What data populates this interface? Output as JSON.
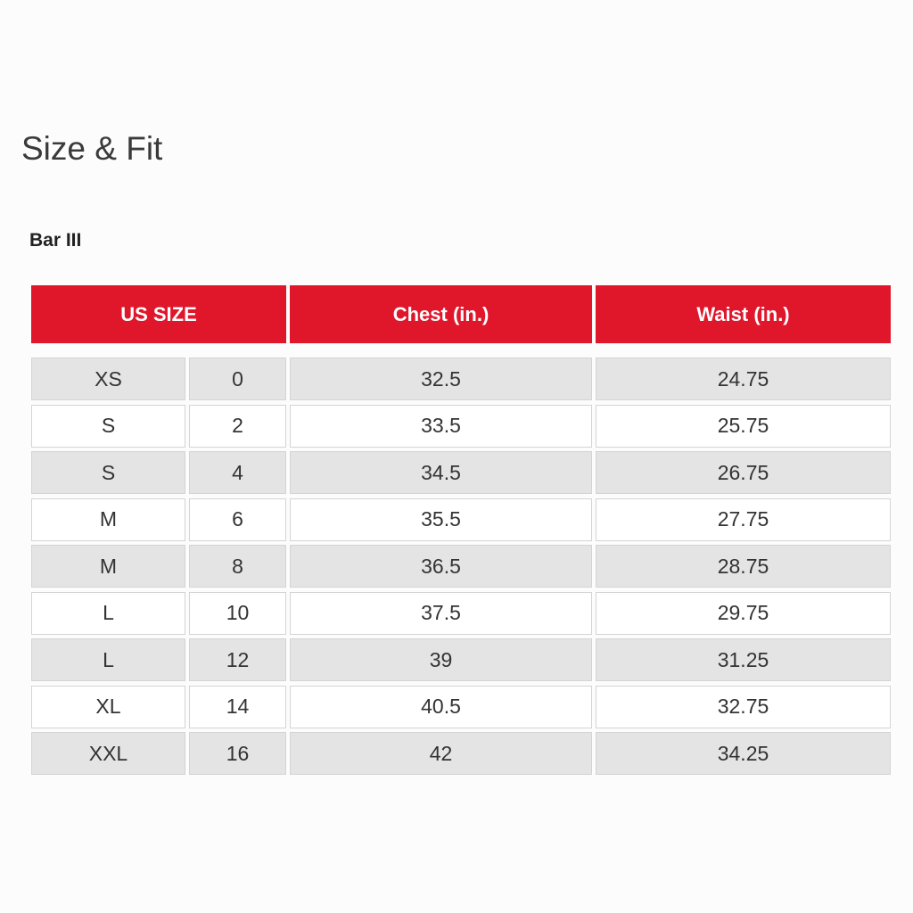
{
  "title": "Size & Fit",
  "brand": "Bar III",
  "colors": {
    "header_bg": "#e0162b",
    "shaded_row": "#e4e4e4"
  },
  "table": {
    "headers": [
      "US SIZE",
      "Chest (in.)",
      "Waist (in.)"
    ],
    "rows": [
      [
        "XS",
        "0",
        "32.5",
        "24.75"
      ],
      [
        "S",
        "2",
        "33.5",
        "25.75"
      ],
      [
        "S",
        "4",
        "34.5",
        "26.75"
      ],
      [
        "M",
        "6",
        "35.5",
        "27.75"
      ],
      [
        "M",
        "8",
        "36.5",
        "28.75"
      ],
      [
        "L",
        "10",
        "37.5",
        "29.75"
      ],
      [
        "L",
        "12",
        "39",
        "31.25"
      ],
      [
        "XL",
        "14",
        "40.5",
        "32.75"
      ],
      [
        "XXL",
        "16",
        "42",
        "34.25"
      ]
    ]
  }
}
